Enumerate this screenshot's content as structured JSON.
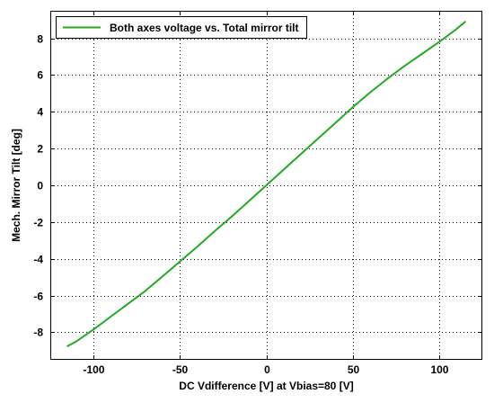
{
  "chart_data": {
    "type": "line",
    "title": "",
    "xlabel": "DC Vdifference [V] at Vbias=80 [V]",
    "ylabel": "Mech. Mirror Tilt [deg]",
    "xlim": [
      -125,
      125
    ],
    "ylim": [
      -9.5,
      9.5
    ],
    "grid": true,
    "legend_position": "top-left",
    "x_ticks": [
      -100,
      -50,
      0,
      50,
      100
    ],
    "y_ticks": [
      -8,
      -6,
      -4,
      -2,
      0,
      2,
      4,
      6,
      8
    ],
    "series": [
      {
        "name": "Both axes voltage vs. Total mirror tilt",
        "color": "#22aa22",
        "x": [
          -115,
          -110,
          -100,
          -90,
          -80,
          -70,
          -60,
          -50,
          -40,
          -30,
          -20,
          -10,
          0,
          10,
          20,
          30,
          40,
          50,
          60,
          70,
          80,
          90,
          100,
          110,
          115
        ],
        "y": [
          -8.75,
          -8.5,
          -7.85,
          -7.15,
          -6.45,
          -5.75,
          -4.95,
          -4.15,
          -3.35,
          -2.5,
          -1.7,
          -0.85,
          0.0,
          0.85,
          1.7,
          2.55,
          3.4,
          4.25,
          5.05,
          5.8,
          6.5,
          7.15,
          7.8,
          8.5,
          8.9
        ]
      }
    ]
  }
}
